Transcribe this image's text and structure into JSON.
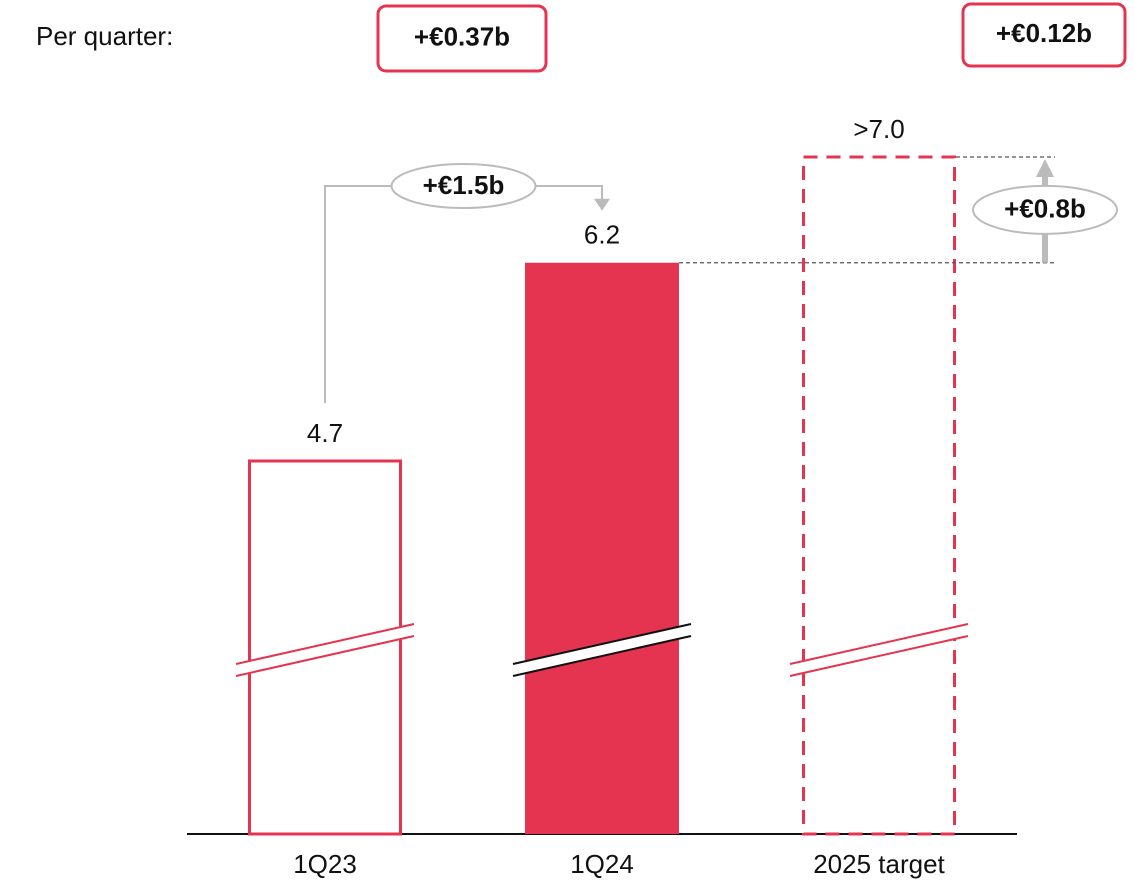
{
  "chart_data": {
    "type": "bar",
    "subtitle": "Per quarter:",
    "categories": [
      "1Q23",
      "1Q24",
      "2025 target"
    ],
    "values": [
      4.7,
      6.2,
      7.0
    ],
    "value_labels": [
      "4.7",
      "6.2",
      ">7.0"
    ],
    "bar_styles": [
      "outline",
      "filled",
      "dashed"
    ],
    "color": "#e5344f",
    "broken_axis": true,
    "annotations": {
      "per_quarter": [
        "+€0.37b",
        "+€0.12b"
      ],
      "steps": [
        {
          "from": 0,
          "to": 1,
          "label": "+€1.5b"
        },
        {
          "from": 1,
          "to": 2,
          "label": "+€0.8b"
        }
      ]
    }
  }
}
